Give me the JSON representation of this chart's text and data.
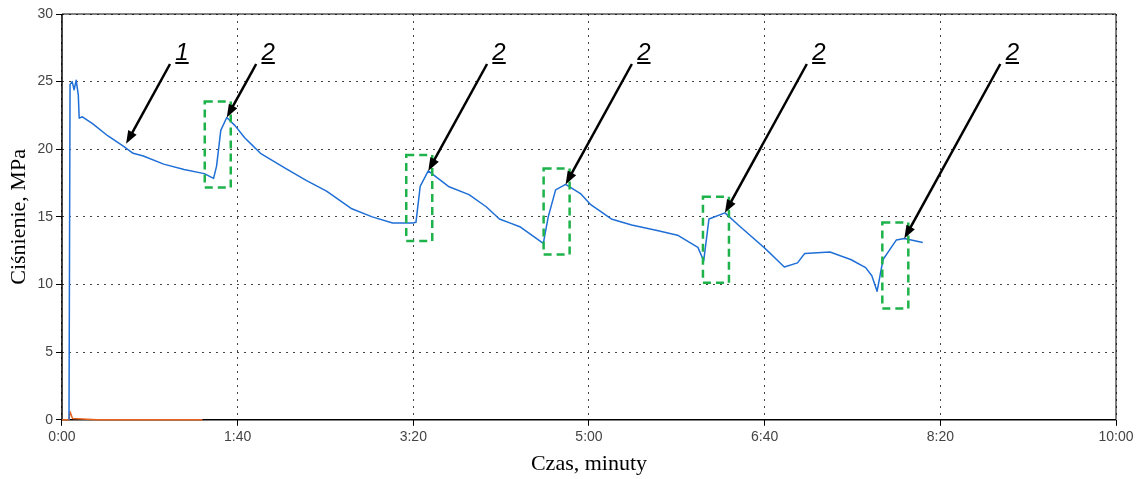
{
  "chart_data": {
    "type": "line",
    "xlabel": "Czas, minuty",
    "ylabel": "Ciśnienie, MPa",
    "xlim": [
      0,
      600
    ],
    "ylim": [
      0,
      30
    ],
    "xticks": [
      {
        "value": 0,
        "label": "0:00"
      },
      {
        "value": 100,
        "label": "1:40"
      },
      {
        "value": 200,
        "label": "3:20"
      },
      {
        "value": 300,
        "label": "5:00"
      },
      {
        "value": 400,
        "label": "6:40"
      },
      {
        "value": 500,
        "label": "8:20"
      },
      {
        "value": 600,
        "label": "10:00"
      }
    ],
    "yticks": [
      0,
      5,
      10,
      15,
      20,
      25,
      30
    ],
    "grid": true,
    "legend": false,
    "marker": "none",
    "line_style": "solid",
    "series": [
      {
        "color": "#1f6fd6",
        "x": [
          4,
          4.6,
          5.8,
          6.9,
          8.1,
          9.3,
          9.8,
          11.6,
          17.4,
          26,
          34.7,
          40.5,
          46.3,
          57.9,
          69.5,
          81,
          86.3,
          88,
          90.4,
          93.8,
          98.5,
          104,
          113,
          127,
          139,
          150.6,
          165,
          176.6,
          188.2,
          199.8,
          201.5,
          203.9,
          208.5,
          220,
          231.7,
          241.5,
          249,
          261,
          274,
          276.8,
          281,
          286.7,
          295.4,
          301,
          312.7,
          324.3,
          338.8,
          350.4,
          362,
          365.3,
          368.3,
          377.4,
          385,
          399.6,
          411.2,
          418.7,
          422.8,
          437.2,
          449,
          457.5,
          461,
          464,
          467.4,
          475,
          479.5,
          490
        ],
        "values": [
          0,
          24.8,
          25,
          24.4,
          25.1,
          24,
          22.3,
          22.4,
          21.9,
          21,
          20.25,
          19.7,
          19.5,
          18.9,
          18.5,
          18.2,
          17.85,
          18.75,
          21.4,
          22.35,
          21.75,
          20.85,
          19.7,
          18.6,
          17.7,
          16.9,
          15.6,
          15,
          14.55,
          14.55,
          14.6,
          17.25,
          18.4,
          17.25,
          16.65,
          15.75,
          14.85,
          14.25,
          13.05,
          15,
          17,
          17.4,
          16.7,
          15.9,
          14.85,
          14.4,
          14,
          13.65,
          12.75,
          11.75,
          14.85,
          15.3,
          14.4,
          12.75,
          11.3,
          11.6,
          12.3,
          12.4,
          11.85,
          11.25,
          10.65,
          9.5,
          11.85,
          13.3,
          13.4,
          13.1
        ]
      },
      {
        "color": "#e8641e",
        "x": [
          0,
          4,
          4.6,
          6,
          20,
          80
        ],
        "values": [
          0,
          0,
          0.6,
          0.1,
          0,
          0
        ]
      }
    ],
    "annotations": [
      {
        "text": "1",
        "x": 36.5,
        "y": 20.4
      },
      {
        "text": "2",
        "x": 93.8,
        "y": 22.35
      },
      {
        "text": "2",
        "x": 208.5,
        "y": 18.4
      },
      {
        "text": "2",
        "x": 286.7,
        "y": 17.4
      },
      {
        "text": "2",
        "x": 377.4,
        "y": 15.3
      },
      {
        "text": "2",
        "x": 479.5,
        "y": 13.4
      }
    ]
  }
}
